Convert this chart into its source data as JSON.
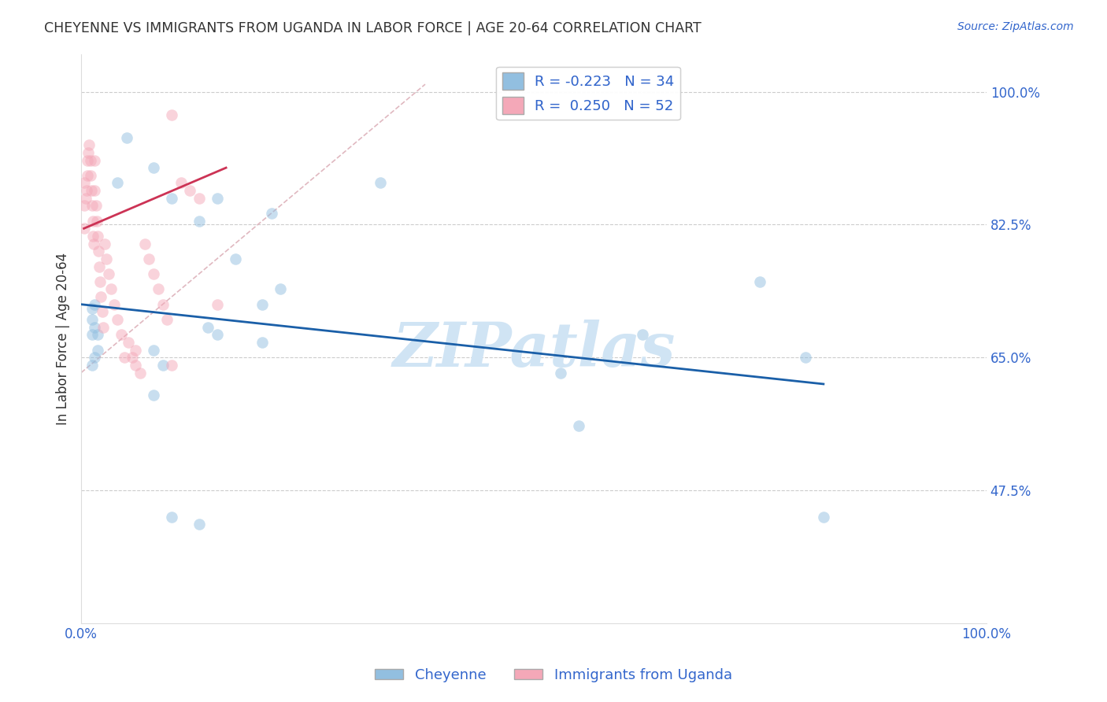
{
  "title": "CHEYENNE VS IMMIGRANTS FROM UGANDA IN LABOR FORCE | AGE 20-64 CORRELATION CHART",
  "source": "Source: ZipAtlas.com",
  "ylabel": "In Labor Force | Age 20-64",
  "xlim": [
    0.0,
    1.0
  ],
  "ylim": [
    0.3,
    1.05
  ],
  "yticks": [
    0.475,
    0.65,
    0.825,
    1.0
  ],
  "ytick_labels": [
    "47.5%",
    "65.0%",
    "82.5%",
    "100.0%"
  ],
  "xticks": [
    0.0,
    0.25,
    0.5,
    0.75,
    1.0
  ],
  "xtick_labels": [
    "0.0%",
    "",
    "",
    "",
    "100.0%"
  ],
  "legend_R_entries": [
    {
      "label": "R = -0.223   N = 34",
      "color": "#a8c8e8"
    },
    {
      "label": "R =  0.250   N = 52",
      "color": "#f4b8c4"
    }
  ],
  "legend_bottom": [
    "Cheyenne",
    "Immigrants from Uganda"
  ],
  "blue_scatter_x": [
    0.012,
    0.012,
    0.012,
    0.015,
    0.015,
    0.018,
    0.018,
    0.012,
    0.015,
    0.05,
    0.08,
    0.04,
    0.1,
    0.15,
    0.21,
    0.13,
    0.17,
    0.2,
    0.14,
    0.22,
    0.33,
    0.53,
    0.55,
    0.62,
    0.75,
    0.8,
    0.82,
    0.08,
    0.09,
    0.15,
    0.2,
    0.1,
    0.13,
    0.08
  ],
  "blue_scatter_y": [
    0.715,
    0.7,
    0.68,
    0.72,
    0.69,
    0.68,
    0.66,
    0.64,
    0.65,
    0.94,
    0.9,
    0.88,
    0.86,
    0.86,
    0.84,
    0.83,
    0.78,
    0.72,
    0.69,
    0.74,
    0.88,
    0.63,
    0.56,
    0.68,
    0.75,
    0.65,
    0.44,
    0.66,
    0.64,
    0.68,
    0.67,
    0.44,
    0.43,
    0.6
  ],
  "pink_scatter_x": [
    0.003,
    0.003,
    0.003,
    0.005,
    0.006,
    0.007,
    0.007,
    0.008,
    0.009,
    0.01,
    0.01,
    0.011,
    0.012,
    0.013,
    0.013,
    0.014,
    0.015,
    0.015,
    0.016,
    0.017,
    0.018,
    0.019,
    0.02,
    0.021,
    0.022,
    0.023,
    0.024,
    0.026,
    0.028,
    0.03,
    0.033,
    0.036,
    0.04,
    0.044,
    0.048,
    0.052,
    0.056,
    0.06,
    0.065,
    0.07,
    0.075,
    0.08,
    0.085,
    0.09,
    0.095,
    0.1,
    0.11,
    0.12,
    0.13,
    0.15,
    0.06,
    0.1
  ],
  "pink_scatter_y": [
    0.88,
    0.85,
    0.82,
    0.86,
    0.87,
    0.89,
    0.91,
    0.92,
    0.93,
    0.91,
    0.89,
    0.87,
    0.85,
    0.83,
    0.81,
    0.8,
    0.91,
    0.87,
    0.85,
    0.83,
    0.81,
    0.79,
    0.77,
    0.75,
    0.73,
    0.71,
    0.69,
    0.8,
    0.78,
    0.76,
    0.74,
    0.72,
    0.7,
    0.68,
    0.65,
    0.67,
    0.65,
    0.64,
    0.63,
    0.8,
    0.78,
    0.76,
    0.74,
    0.72,
    0.7,
    0.97,
    0.88,
    0.87,
    0.86,
    0.72,
    0.66,
    0.64
  ],
  "blue_line_x": [
    0.0,
    0.82
  ],
  "blue_line_y": [
    0.72,
    0.615
  ],
  "pink_line_x": [
    0.003,
    0.16
  ],
  "pink_line_y": [
    0.82,
    0.9
  ],
  "diag_line_x": [
    0.0,
    0.38
  ],
  "diag_line_y": [
    0.63,
    1.01
  ],
  "scatter_size": 110,
  "scatter_alpha": 0.5,
  "blue_color": "#92bfe0",
  "pink_color": "#f4a8b8",
  "blue_line_color": "#1a5fa8",
  "pink_line_color": "#cc3355",
  "diag_line_color": "#e0b8c0",
  "grid_color": "#cccccc",
  "background_color": "#ffffff",
  "title_color": "#333333",
  "axis_label_color": "#3366cc",
  "watermark": "ZIPatlas",
  "watermark_color": "#d0e4f4"
}
